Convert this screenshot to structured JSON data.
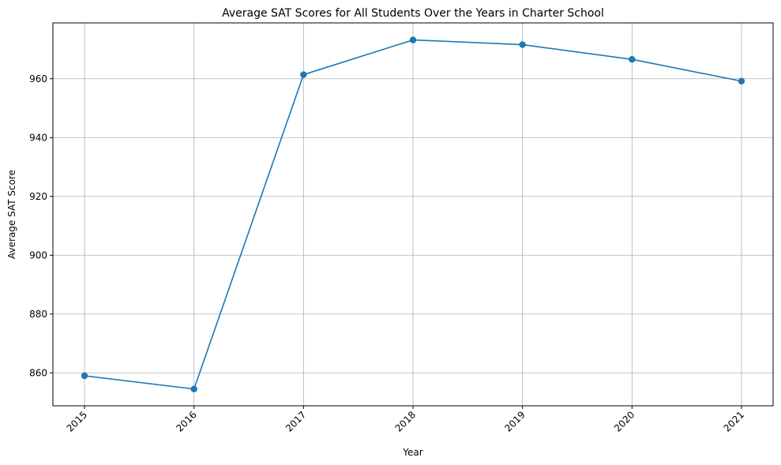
{
  "chart_data": {
    "type": "line",
    "title": "Average SAT Scores for All Students Over the Years in Charter School",
    "xlabel": "Year",
    "ylabel": "Average SAT Score",
    "x": [
      "2015",
      "2016",
      "2017",
      "2018",
      "2019",
      "2020",
      "2021"
    ],
    "series": [
      {
        "values": [
          859.0,
          854.5,
          961.4,
          973.2,
          971.6,
          966.6,
          959.2
        ],
        "color": "#1f77b4",
        "marker": "circle"
      }
    ],
    "ylim": [
      848.8,
      979.0
    ],
    "yticks": [
      860,
      880,
      900,
      920,
      940,
      960
    ],
    "grid": true,
    "legend": "none",
    "xtick_rotation": 45
  }
}
